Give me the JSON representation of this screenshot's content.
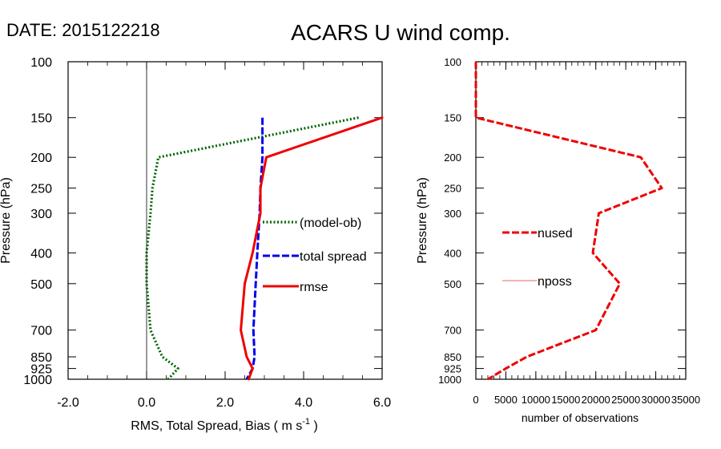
{
  "header": {
    "date_label": "DATE: 2015122218",
    "title": "ACARS U wind comp."
  },
  "chart_data": [
    {
      "type": "line",
      "ylabel": "Pressure (hPa)",
      "xlabel_main": "RMS, Total Spread, Bias ( m s",
      "xlabel_sup": "-1",
      "xlabel_end": " )",
      "xlim": [
        -2.0,
        6.0
      ],
      "ylim": [
        1000,
        100
      ],
      "yscale": "log",
      "xticks": [
        {
          "value": -2.0,
          "label": "-2.0"
        },
        {
          "value": 0.0,
          "label": "0.0"
        },
        {
          "value": 2.0,
          "label": "2.0"
        },
        {
          "value": 4.0,
          "label": "4.0"
        },
        {
          "value": 6.0,
          "label": "6.0"
        }
      ],
      "yticks": [
        {
          "value": 100,
          "label": "100"
        },
        {
          "value": 150,
          "label": "150"
        },
        {
          "value": 200,
          "label": "200"
        },
        {
          "value": 250,
          "label": "250"
        },
        {
          "value": 300,
          "label": "300"
        },
        {
          "value": 400,
          "label": "400"
        },
        {
          "value": 500,
          "label": "500"
        },
        {
          "value": 700,
          "label": "700"
        },
        {
          "value": 850,
          "label": "850"
        },
        {
          "value": 925,
          "label": "925"
        },
        {
          "value": 1000,
          "label": "1000"
        }
      ],
      "zero_line": 0.0,
      "series": [
        {
          "name": "(model-ob)",
          "color": "#006400",
          "style": "dotted",
          "points": [
            [
              5.4,
              150
            ],
            [
              0.3,
              200
            ],
            [
              0.15,
              250
            ],
            [
              0.1,
              300
            ],
            [
              0.0,
              400
            ],
            [
              0.0,
              500
            ],
            [
              0.1,
              700
            ],
            [
              0.4,
              850
            ],
            [
              0.8,
              925
            ],
            [
              0.55,
              1000
            ]
          ]
        },
        {
          "name": "total spread",
          "color": "#0000ee",
          "style": "dashed",
          "points": [
            [
              2.95,
              150
            ],
            [
              2.95,
              200
            ],
            [
              2.9,
              250
            ],
            [
              2.88,
              300
            ],
            [
              2.82,
              400
            ],
            [
              2.78,
              500
            ],
            [
              2.72,
              700
            ],
            [
              2.75,
              850
            ],
            [
              2.7,
              925
            ],
            [
              2.55,
              1000
            ]
          ]
        },
        {
          "name": "rmse",
          "color": "#ee0000",
          "style": "solid",
          "points": [
            [
              6.0,
              150
            ],
            [
              3.05,
              200
            ],
            [
              2.9,
              250
            ],
            [
              2.9,
              300
            ],
            [
              2.7,
              400
            ],
            [
              2.5,
              500
            ],
            [
              2.4,
              700
            ],
            [
              2.55,
              850
            ],
            [
              2.7,
              925
            ],
            [
              2.6,
              1000
            ]
          ]
        }
      ]
    },
    {
      "type": "line",
      "ylabel": "Pressure (hPa)",
      "xlabel": "number of observations",
      "xlim": [
        0,
        35000
      ],
      "ylim": [
        1000,
        100
      ],
      "yscale": "log",
      "xticks": [
        {
          "value": 0,
          "label": "0"
        },
        {
          "value": 5000,
          "label": "5000"
        },
        {
          "value": 10000,
          "label": "10000"
        },
        {
          "value": 15000,
          "label": "15000"
        },
        {
          "value": 20000,
          "label": "20000"
        },
        {
          "value": 25000,
          "label": "25000"
        },
        {
          "value": 30000,
          "label": "30000"
        },
        {
          "value": 35000,
          "label": "35000"
        }
      ],
      "yticks": [
        {
          "value": 100,
          "label": "100"
        },
        {
          "value": 150,
          "label": "150"
        },
        {
          "value": 200,
          "label": "200"
        },
        {
          "value": 250,
          "label": "250"
        },
        {
          "value": 300,
          "label": "300"
        },
        {
          "value": 400,
          "label": "400"
        },
        {
          "value": 500,
          "label": "500"
        },
        {
          "value": 700,
          "label": "700"
        },
        {
          "value": 850,
          "label": "850"
        },
        {
          "value": 925,
          "label": "925"
        },
        {
          "value": 1000,
          "label": "1000"
        }
      ],
      "series": [
        {
          "name": "nused",
          "color": "#ee0000",
          "style": "dashed",
          "points": [
            [
              0,
              100
            ],
            [
              0,
              150
            ],
            [
              27500,
              200
            ],
            [
              31000,
              250
            ],
            [
              20500,
              300
            ],
            [
              19500,
              400
            ],
            [
              24000,
              500
            ],
            [
              20000,
              700
            ],
            [
              8500,
              850
            ],
            [
              5000,
              925
            ],
            [
              2000,
              1000
            ]
          ]
        },
        {
          "name": "nposs",
          "color": "#ee6666",
          "style": "thin",
          "points": [
            [
              0,
              100
            ],
            [
              0,
              150
            ],
            [
              27500,
              200
            ],
            [
              31000,
              250
            ],
            [
              20500,
              300
            ],
            [
              19500,
              400
            ],
            [
              24000,
              500
            ],
            [
              20000,
              700
            ],
            [
              8500,
              850
            ],
            [
              5000,
              925
            ],
            [
              2000,
              1000
            ]
          ]
        }
      ]
    }
  ]
}
